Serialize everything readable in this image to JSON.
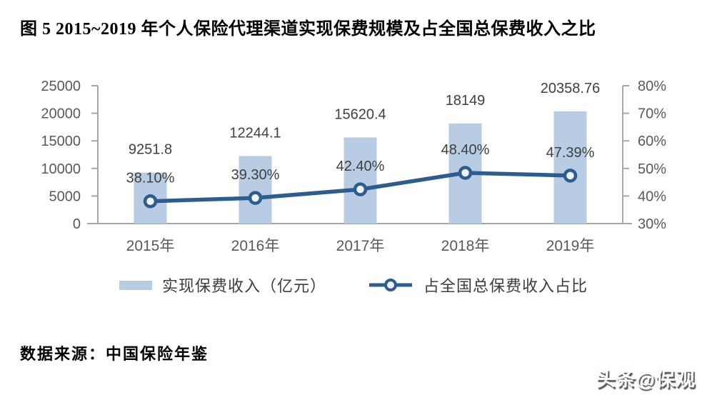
{
  "title": "图 5 2015~2019 年个人保险代理渠道实现保费规模及占全国总保费收入之比",
  "source": "数据来源：中国保险年鉴",
  "watermark": "头条@保观",
  "colors": {
    "bar_fill": "#b8cce4",
    "line_stroke": "#2d5c8e",
    "marker_fill": "#eef3fa",
    "axis_line": "#a6a6a6",
    "axis_text": "#595959",
    "data_label_text": "#3f3f3f"
  },
  "chart_data": {
    "type": "bar",
    "subtype": "bar-line-combo",
    "categories": [
      "2015年",
      "2016年",
      "2017年",
      "2018年",
      "2019年"
    ],
    "series": [
      {
        "name": "实现保费收入（亿元）",
        "type": "bar",
        "axis": "left",
        "values": [
          9251.8,
          12244.1,
          15620.4,
          18149,
          20358.76
        ],
        "labels": [
          "9251.8",
          "12244.1",
          "15620.4",
          "18149",
          "20358.76"
        ],
        "color": "#b8cce4"
      },
      {
        "name": "占全国总保费收入占比",
        "type": "line",
        "axis": "right",
        "values": [
          38.1,
          39.3,
          42.4,
          48.4,
          47.39
        ],
        "labels": [
          "38.10%",
          "39.30%",
          "42.40%",
          "48.40%",
          "47.39%"
        ],
        "color": "#2d5c8e"
      }
    ],
    "left_axis": {
      "min": 0,
      "max": 25000,
      "ticks": [
        "25000",
        "20000",
        "15000",
        "10000",
        "5000",
        "0"
      ]
    },
    "right_axis": {
      "min": 30,
      "max": 80,
      "ticks": [
        "80%",
        "70%",
        "60%",
        "50%",
        "40%",
        "30%"
      ]
    },
    "grid": false,
    "legend_position": "bottom",
    "xlabel": "",
    "ylabel": ""
  }
}
